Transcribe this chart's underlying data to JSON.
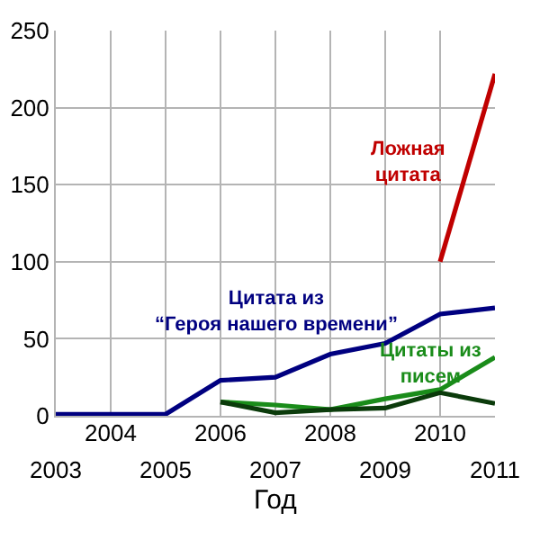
{
  "chart_data": {
    "type": "line",
    "xlabel": "Год",
    "x": [
      2003,
      2004,
      2005,
      2006,
      2007,
      2008,
      2009,
      2010,
      2011
    ],
    "xlim": [
      2003,
      2011
    ],
    "xticks": [
      2003,
      2005,
      2007,
      2009,
      2011
    ],
    "x2lim": [
      2003,
      2011
    ],
    "x2ticks": [
      2004,
      2006,
      2008,
      2010
    ],
    "ylim": [
      0,
      250
    ],
    "yticks": [
      0,
      50,
      100,
      150,
      200,
      250
    ],
    "grid": true,
    "legend": false,
    "series": [
      {
        "name": "Ложная цитата",
        "color": "#c00000",
        "values": [
          null,
          null,
          null,
          null,
          null,
          null,
          null,
          100,
          222
        ]
      },
      {
        "name": "Цитата из “Героя нашего времени”",
        "color": "#000080",
        "values": [
          1,
          1,
          1,
          23,
          25,
          40,
          47,
          66,
          70
        ]
      },
      {
        "name": "Цитаты из писем",
        "color": "#1a8c1a",
        "values": [
          null,
          null,
          null,
          9,
          7,
          4,
          11,
          17,
          38
        ]
      },
      {
        "color": "#0b3b0b",
        "values": [
          null,
          null,
          null,
          9,
          2,
          4,
          5,
          15,
          8
        ]
      }
    ]
  }
}
